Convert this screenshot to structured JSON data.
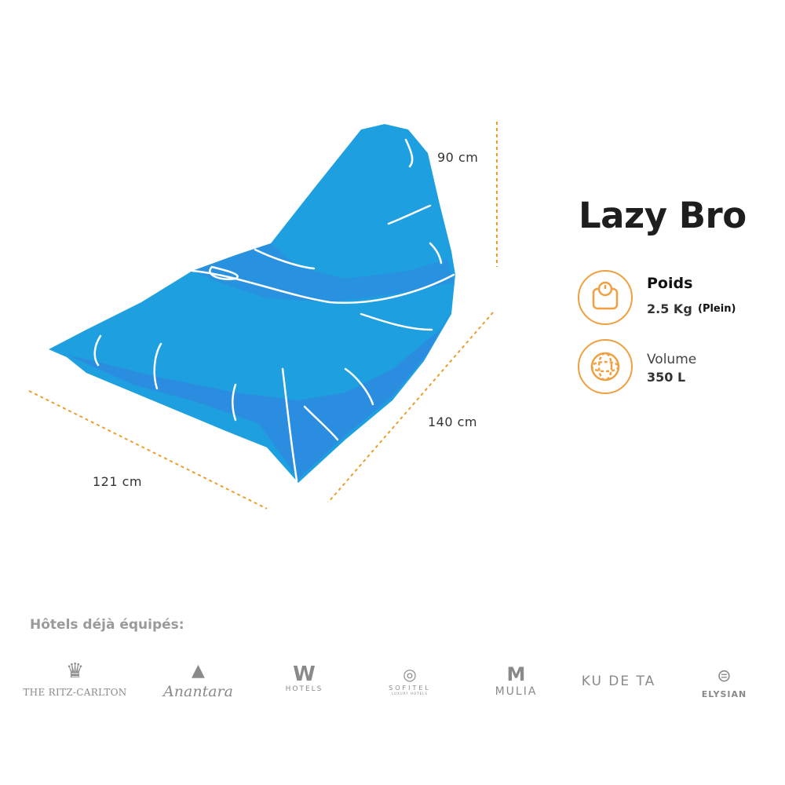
{
  "product": {
    "name": "Lazy Bro"
  },
  "dimensions": {
    "height": "90 cm",
    "length": "140 cm",
    "width": "121 cm"
  },
  "specs": [
    {
      "icon": "scale-icon",
      "label": "Poids",
      "value": "2.5 Kg",
      "note": "(Plein)"
    },
    {
      "icon": "globe-icon",
      "label": "Volume",
      "value": "350 L"
    }
  ],
  "hotels": {
    "title": "Hôtels déjà équipés:",
    "logos": [
      {
        "name": "THE RITZ-CARLTON"
      },
      {
        "name": "Anantara"
      },
      {
        "name": "W",
        "sub": "HOTELS"
      },
      {
        "name": "SOFITEL",
        "sub": "LUXURY HOTELS"
      },
      {
        "name": "MULIA"
      },
      {
        "name": "KU DE TA"
      },
      {
        "name": "ELYSIAN"
      }
    ]
  },
  "colors": {
    "beanbag": "#1ea0e0",
    "beanbag_shadow": "#2b8de0",
    "accent": "#f0a040",
    "dimension_line": "#e8a030"
  }
}
